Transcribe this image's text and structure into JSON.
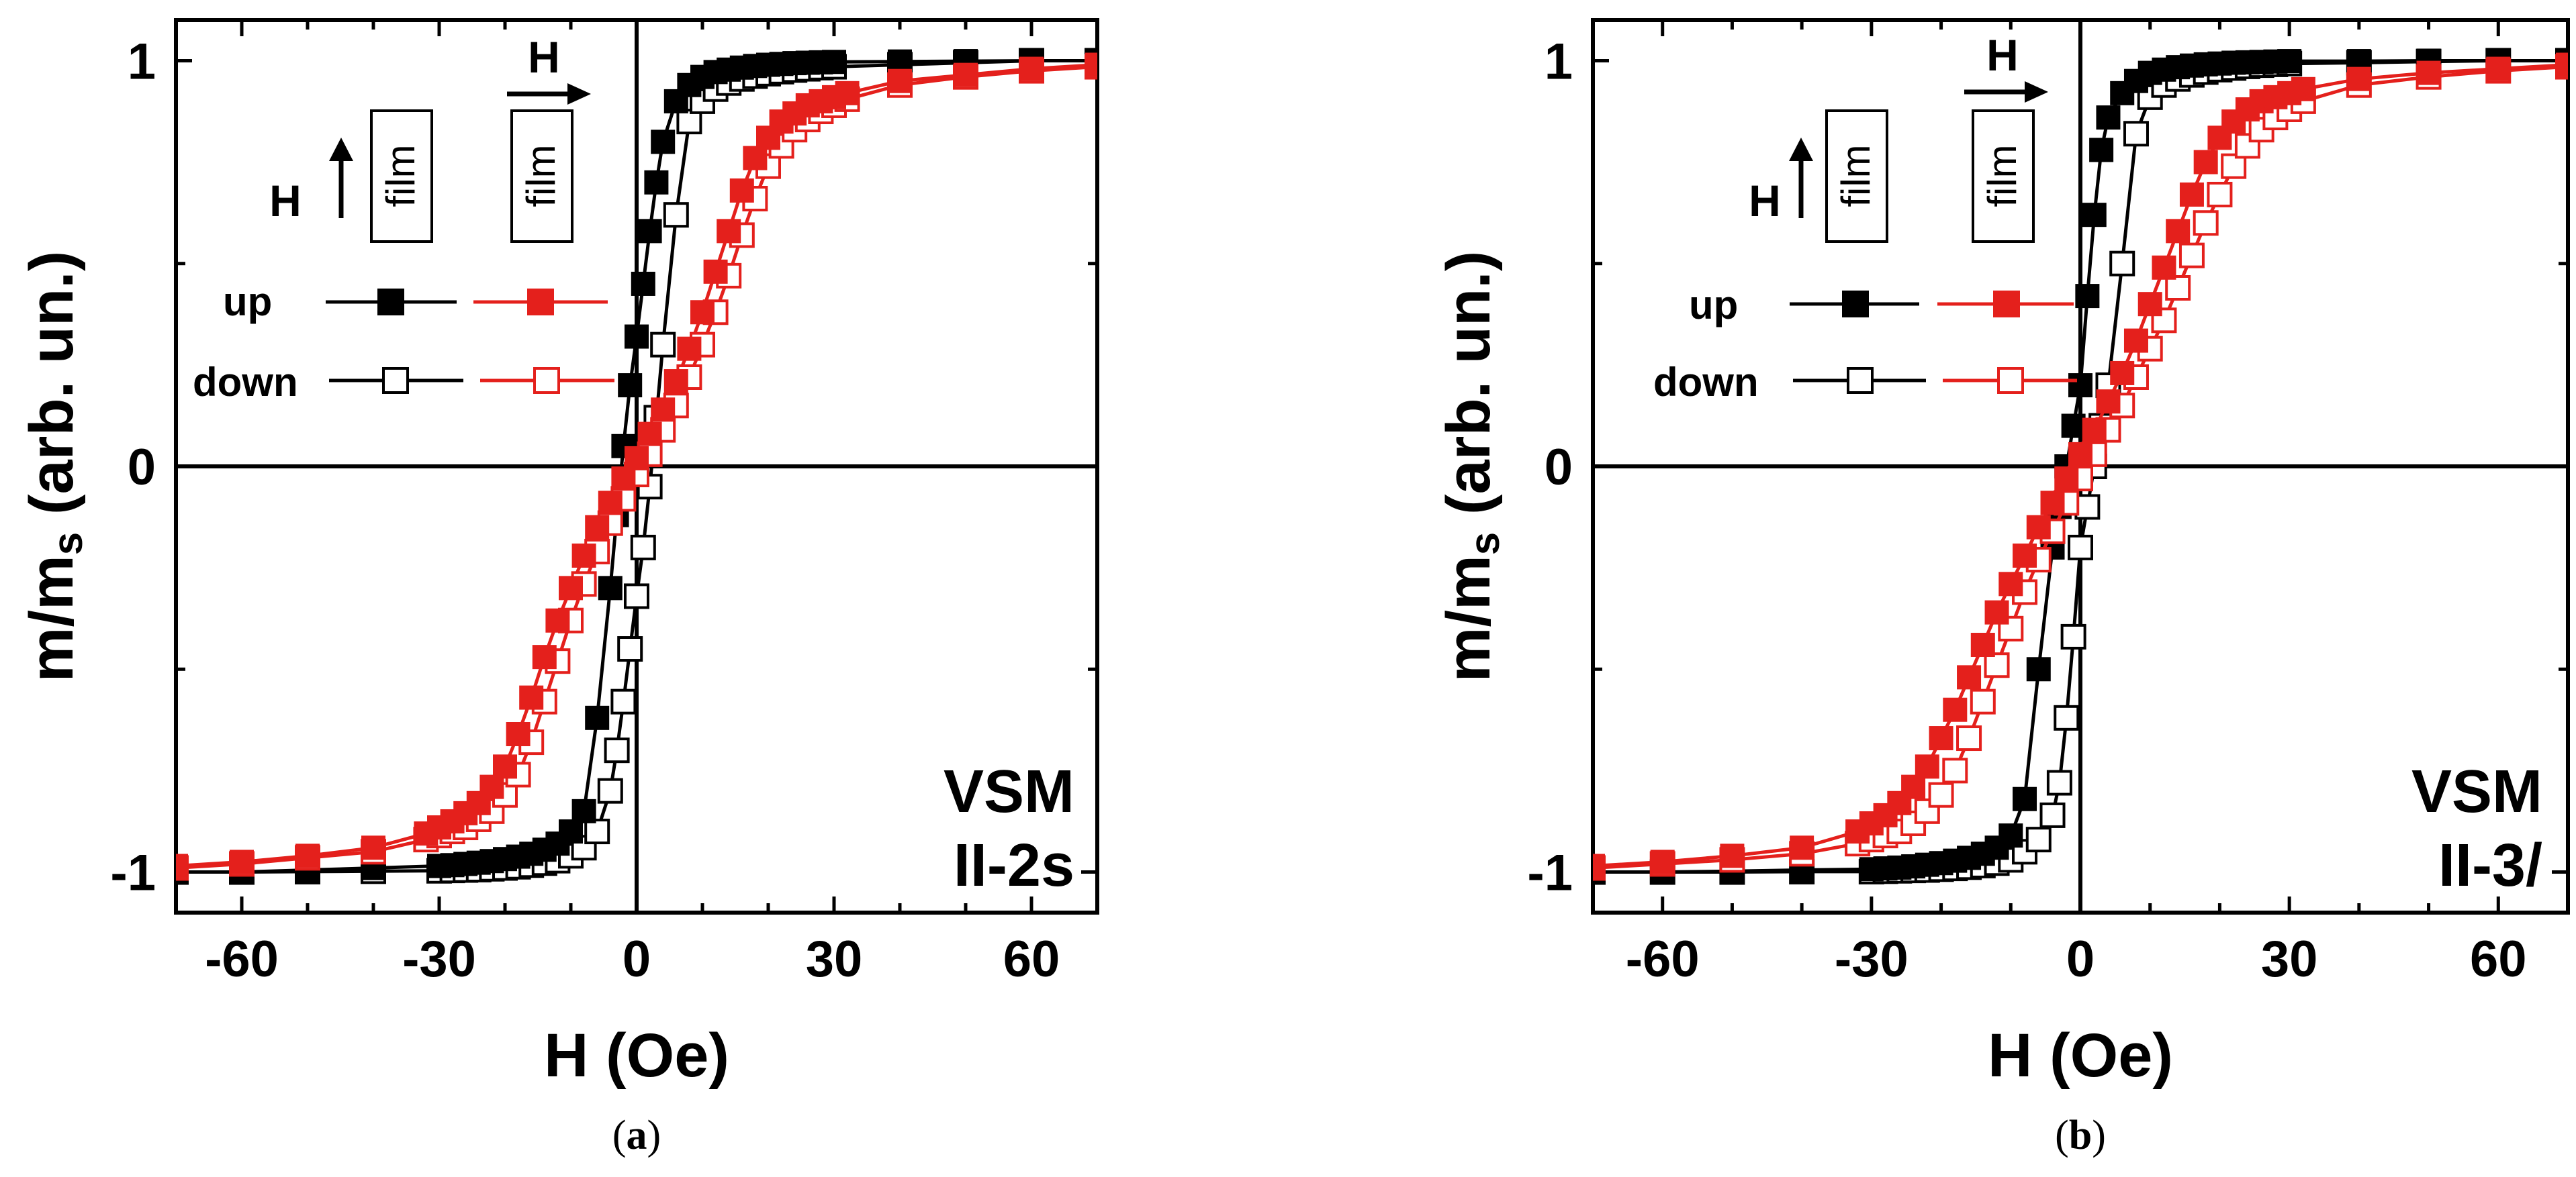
{
  "colors": {
    "perpendicular": "#000000",
    "in_plane": "#e4201c",
    "axes": "#000000"
  },
  "chart_data": [
    {
      "type": "scatter",
      "panel_caption": [
        "(",
        "a",
        ")"
      ],
      "xlabel": "H (Oe)",
      "ylabel": [
        "m/m",
        "s",
        " (arb. un.)"
      ],
      "xlim": [
        -70,
        70
      ],
      "ylim": [
        -1.1,
        1.1
      ],
      "xticks": [
        -60,
        -30,
        0,
        30,
        60
      ],
      "xtick_labels": [
        "-60",
        "-30",
        "0",
        "30",
        "60"
      ],
      "yticks": [
        -1,
        0,
        1
      ],
      "ytick_labels": [
        "-1",
        "0",
        "1"
      ],
      "sample_label": [
        "VSM",
        "II-2s"
      ],
      "legend": {
        "field_label": "H",
        "film_label": "film",
        "rows": [
          {
            "label": "up",
            "filled": true
          },
          {
            "label": "down",
            "filled": false
          }
        ]
      },
      "series": [
        {
          "name": "perpendicular",
          "color": "#000000",
          "H": [
            -70,
            -60,
            -50,
            -40,
            -30,
            -28,
            -26,
            -24,
            -22,
            -20,
            -18,
            -16,
            -14,
            -12,
            -10,
            -8,
            -6,
            -4,
            -3,
            -2,
            -1,
            0,
            1,
            2,
            3,
            4,
            6,
            8,
            10,
            12,
            14,
            16,
            18,
            20,
            22,
            24,
            26,
            28,
            30,
            40,
            50,
            60,
            70
          ],
          "m_up": [
            -1.0,
            -1.0,
            -0.995,
            -0.99,
            -0.985,
            -0.983,
            -0.98,
            -0.977,
            -0.973,
            -0.968,
            -0.962,
            -0.955,
            -0.945,
            -0.93,
            -0.9,
            -0.85,
            -0.62,
            -0.3,
            -0.12,
            0.05,
            0.2,
            0.32,
            0.45,
            0.58,
            0.7,
            0.8,
            0.9,
            0.94,
            0.96,
            0.972,
            0.978,
            0.983,
            0.987,
            0.99,
            0.992,
            0.994,
            0.995,
            0.996,
            0.997,
            0.998,
            0.999,
            1.0,
            1.0
          ],
          "m_down": [
            -1.0,
            -1.0,
            -0.999,
            -0.998,
            -0.997,
            -0.996,
            -0.995,
            -0.994,
            -0.992,
            -0.99,
            -0.987,
            -0.983,
            -0.978,
            -0.972,
            -0.96,
            -0.94,
            -0.9,
            -0.8,
            -0.7,
            -0.58,
            -0.45,
            -0.32,
            -0.2,
            -0.05,
            0.12,
            0.3,
            0.62,
            0.85,
            0.9,
            0.93,
            0.945,
            0.955,
            0.962,
            0.968,
            0.973,
            0.977,
            0.98,
            0.983,
            0.985,
            0.99,
            0.995,
            1.0,
            1.0
          ]
        },
        {
          "name": "in-plane",
          "color": "#e4201c",
          "H": [
            -70,
            -60,
            -50,
            -40,
            -32,
            -30,
            -28,
            -26,
            -24,
            -22,
            -20,
            -18,
            -16,
            -14,
            -12,
            -10,
            -8,
            -6,
            -4,
            -2,
            0,
            2,
            4,
            6,
            8,
            10,
            12,
            14,
            16,
            18,
            20,
            22,
            24,
            26,
            28,
            30,
            32,
            40,
            50,
            60,
            70
          ],
          "m_up": [
            -0.985,
            -0.975,
            -0.96,
            -0.94,
            -0.905,
            -0.89,
            -0.875,
            -0.855,
            -0.83,
            -0.79,
            -0.74,
            -0.66,
            -0.57,
            -0.47,
            -0.38,
            -0.3,
            -0.22,
            -0.15,
            -0.09,
            -0.03,
            0.02,
            0.08,
            0.14,
            0.21,
            0.29,
            0.38,
            0.48,
            0.58,
            0.68,
            0.76,
            0.81,
            0.85,
            0.87,
            0.89,
            0.9,
            0.91,
            0.92,
            0.95,
            0.965,
            0.98,
            0.99
          ],
          "m_down": [
            -0.99,
            -0.98,
            -0.965,
            -0.95,
            -0.92,
            -0.91,
            -0.9,
            -0.89,
            -0.87,
            -0.85,
            -0.81,
            -0.76,
            -0.68,
            -0.58,
            -0.48,
            -0.38,
            -0.29,
            -0.21,
            -0.14,
            -0.08,
            -0.02,
            0.03,
            0.09,
            0.15,
            0.22,
            0.3,
            0.38,
            0.47,
            0.57,
            0.66,
            0.74,
            0.79,
            0.83,
            0.855,
            0.875,
            0.89,
            0.905,
            0.94,
            0.96,
            0.975,
            0.985
          ]
        }
      ]
    },
    {
      "type": "scatter",
      "panel_caption": [
        "(",
        "b",
        ")"
      ],
      "xlabel": "H (Oe)",
      "ylabel": [
        "m/m",
        "s",
        " (arb. un.)"
      ],
      "xlim": [
        -70,
        70
      ],
      "ylim": [
        -1.1,
        1.1
      ],
      "xticks": [
        -60,
        -30,
        0,
        30,
        60
      ],
      "xtick_labels": [
        "-60",
        "-30",
        "0",
        "30",
        "60"
      ],
      "yticks": [
        -1,
        0,
        1
      ],
      "ytick_labels": [
        "-1",
        "0",
        "1"
      ],
      "sample_label": [
        "VSM",
        "II-3/"
      ],
      "legend": {
        "field_label": "H",
        "film_label": "film",
        "rows": [
          {
            "label": "up",
            "filled": true
          },
          {
            "label": "down",
            "filled": false
          }
        ]
      },
      "series": [
        {
          "name": "perpendicular",
          "color": "#000000",
          "H": [
            -70,
            -60,
            -50,
            -40,
            -30,
            -28,
            -26,
            -24,
            -22,
            -20,
            -18,
            -16,
            -14,
            -12,
            -10,
            -8,
            -6,
            -4,
            -3,
            -2,
            -1,
            0,
            1,
            2,
            3,
            4,
            6,
            8,
            10,
            12,
            14,
            16,
            18,
            20,
            22,
            24,
            26,
            28,
            30,
            40,
            50,
            60,
            70
          ],
          "m_up": [
            -1.0,
            -1.0,
            -0.998,
            -0.995,
            -0.993,
            -0.991,
            -0.989,
            -0.986,
            -0.982,
            -0.978,
            -0.972,
            -0.965,
            -0.955,
            -0.94,
            -0.91,
            -0.82,
            -0.5,
            -0.2,
            -0.1,
            0.0,
            0.1,
            0.2,
            0.42,
            0.62,
            0.78,
            0.86,
            0.92,
            0.95,
            0.97,
            0.978,
            0.984,
            0.988,
            0.991,
            0.993,
            0.995,
            0.996,
            0.997,
            0.998,
            0.999,
            0.999,
            1.0,
            1.0,
            1.0
          ],
          "m_down": [
            -1.0,
            -1.0,
            -1.0,
            -0.999,
            -0.999,
            -0.998,
            -0.997,
            -0.996,
            -0.995,
            -0.993,
            -0.991,
            -0.988,
            -0.984,
            -0.978,
            -0.97,
            -0.95,
            -0.92,
            -0.86,
            -0.78,
            -0.62,
            -0.42,
            -0.2,
            -0.1,
            0.0,
            0.1,
            0.2,
            0.5,
            0.82,
            0.91,
            0.94,
            0.955,
            0.965,
            0.972,
            0.978,
            0.982,
            0.986,
            0.989,
            0.991,
            0.993,
            0.995,
            0.998,
            1.0,
            1.0
          ]
        },
        {
          "name": "in-plane",
          "color": "#e4201c",
          "H": [
            -70,
            -60,
            -50,
            -40,
            -32,
            -30,
            -28,
            -26,
            -24,
            -22,
            -20,
            -18,
            -16,
            -14,
            -12,
            -10,
            -8,
            -6,
            -4,
            -2,
            0,
            2,
            4,
            6,
            8,
            10,
            12,
            14,
            16,
            18,
            20,
            22,
            24,
            26,
            28,
            30,
            32,
            40,
            50,
            60,
            70
          ],
          "m_up": [
            -0.985,
            -0.975,
            -0.96,
            -0.94,
            -0.9,
            -0.88,
            -0.86,
            -0.83,
            -0.79,
            -0.74,
            -0.67,
            -0.6,
            -0.52,
            -0.44,
            -0.36,
            -0.29,
            -0.22,
            -0.15,
            -0.09,
            -0.03,
            0.03,
            0.09,
            0.16,
            0.23,
            0.31,
            0.4,
            0.49,
            0.58,
            0.67,
            0.75,
            0.81,
            0.85,
            0.88,
            0.9,
            0.91,
            0.92,
            0.93,
            0.955,
            0.97,
            0.98,
            0.99
          ],
          "m_down": [
            -0.99,
            -0.98,
            -0.97,
            -0.955,
            -0.93,
            -0.92,
            -0.91,
            -0.9,
            -0.88,
            -0.85,
            -0.81,
            -0.75,
            -0.67,
            -0.58,
            -0.49,
            -0.4,
            -0.31,
            -0.23,
            -0.16,
            -0.09,
            -0.03,
            0.03,
            0.09,
            0.15,
            0.22,
            0.29,
            0.36,
            0.44,
            0.52,
            0.6,
            0.67,
            0.74,
            0.79,
            0.83,
            0.86,
            0.88,
            0.9,
            0.94,
            0.96,
            0.975,
            0.985
          ]
        }
      ]
    }
  ]
}
